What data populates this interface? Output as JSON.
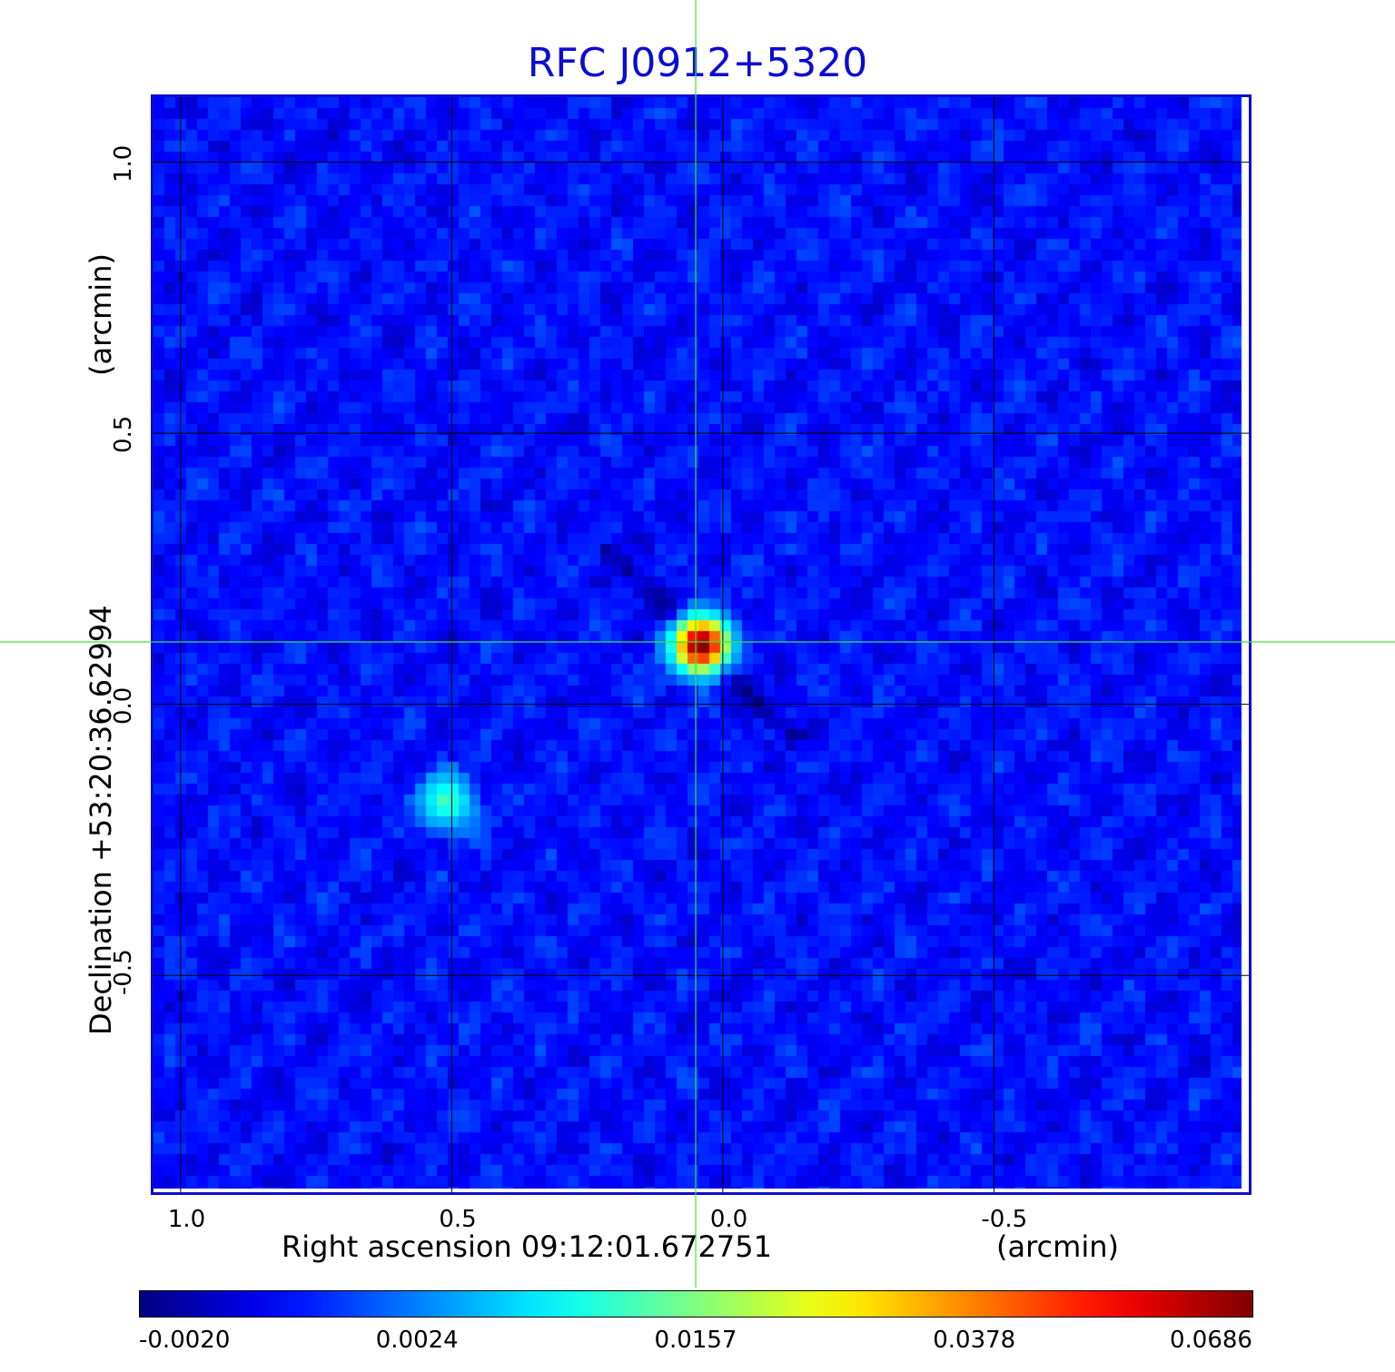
{
  "title": "RFC J0912+5320",
  "colors": {
    "title": "#0c0cd0",
    "frame": "#0c0cd0",
    "grid": "#000000",
    "crosshair": "#40e040"
  },
  "axes": {
    "x_label": "Right ascension  09:12:01.672751",
    "x_unit": "(arcmin)",
    "y_label": "Declination  +53:20:36.62994",
    "y_unit": "(arcmin)",
    "x_ticks": [
      "1.0",
      "0.5",
      "0.0",
      "-0.5"
    ],
    "y_ticks": [
      "1.0",
      "0.5",
      "0.0",
      "-0.5"
    ],
    "x_tick_values": [
      1.0,
      0.5,
      0.0,
      -0.5
    ],
    "y_tick_values": [
      1.0,
      0.5,
      0.0,
      -0.5
    ],
    "x_range_arcmin": [
      1.05,
      -0.97
    ],
    "y_range_arcmin": [
      1.12,
      -0.9
    ]
  },
  "sources": [
    {
      "name": "main",
      "ra_offset_arcmin": 0.04,
      "dec_offset_arcmin": 0.11,
      "peak": 0.0686
    },
    {
      "name": "secondary",
      "ra_offset_arcmin": 0.51,
      "dec_offset_arcmin": -0.18,
      "peak": 0.012
    }
  ],
  "crosshair": {
    "ra_offset_arcmin": 0.05,
    "dec_offset_arcmin": 0.115
  },
  "colorbar": {
    "ticks": [
      "-0.0020",
      "0.0024",
      "0.0157",
      "0.0378",
      "0.0686"
    ],
    "colormap": "jet"
  }
}
